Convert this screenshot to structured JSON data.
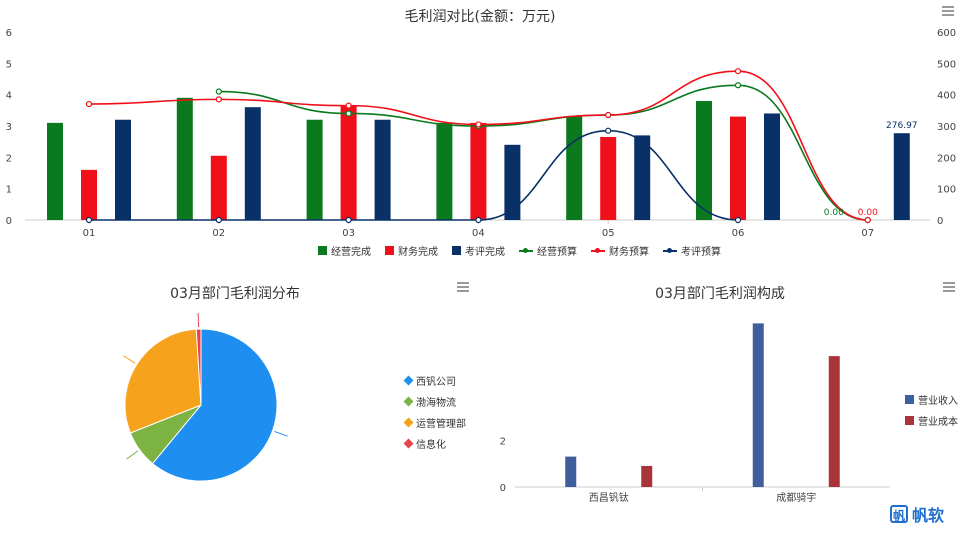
{
  "chart_data": [
    {
      "type": "bar",
      "title": "毛利润对比(金额：万元)",
      "categories": [
        "01",
        "02",
        "03",
        "04",
        "05",
        "06",
        "07"
      ],
      "y_left_ticks": [
        "0",
        "1",
        "2",
        "3",
        "4",
        "5",
        "6"
      ],
      "y_right_ticks": [
        "0",
        "100",
        "200",
        "300",
        "400",
        "500",
        "600"
      ],
      "ylim_right": [
        0,
        600
      ],
      "series": [
        {
          "name": "经营完成",
          "kind": "bar",
          "color": "#0b7a1f",
          "values": [
            310,
            390,
            320,
            310,
            330,
            380,
            0
          ]
        },
        {
          "name": "财务完成",
          "kind": "bar",
          "color": "#f0101a",
          "values": [
            160,
            205,
            365,
            310,
            265,
            330,
            0
          ]
        },
        {
          "name": "考评完成",
          "kind": "bar",
          "color": "#0a3068",
          "values": [
            320,
            360,
            320,
            240,
            270,
            340,
            277
          ]
        },
        {
          "name": "经营预算",
          "kind": "line",
          "color": "#0b7a1f",
          "values": [
            null,
            410,
            340,
            300,
            335,
            430,
            0
          ]
        },
        {
          "name": "财务预算",
          "kind": "line",
          "color": "#f0101a",
          "values": [
            370,
            385,
            365,
            305,
            335,
            475,
            0
          ]
        },
        {
          "name": "考评预算",
          "kind": "line",
          "color": "#0a3068",
          "values": [
            0,
            0,
            0,
            0,
            285,
            0,
            null
          ]
        }
      ],
      "data_labels": [
        {
          "category": "07",
          "series": "考评完成",
          "text": "276.97"
        },
        {
          "category": "07",
          "series": "经营完成",
          "text": "0.00"
        },
        {
          "category": "07",
          "series": "财务完成",
          "text": "0.00"
        }
      ]
    },
    {
      "type": "pie",
      "title": "03月部门毛利润分布",
      "slices": [
        {
          "name": "西钒公司",
          "value": 61,
          "color": "#1f8ef1"
        },
        {
          "name": "渤海物流",
          "value": 8,
          "color": "#7cb342"
        },
        {
          "name": "运营管理部",
          "value": 30,
          "color": "#f6a21c"
        },
        {
          "name": "信息化",
          "value": 1,
          "color": "#e8434c"
        }
      ]
    },
    {
      "type": "bar",
      "title": "03月部门毛利润构成",
      "categories": [
        "西昌钒钛",
        "成都骑宇"
      ],
      "y_ticks": [
        "0",
        "2"
      ],
      "ylim": [
        0,
        8
      ],
      "series": [
        {
          "name": "营业收入",
          "color": "#3f5f9c",
          "values": [
            1.3,
            7.0
          ]
        },
        {
          "name": "营业成本",
          "color": "#a8343a",
          "values": [
            0.9,
            5.6
          ]
        }
      ]
    }
  ],
  "logo": {
    "mark": "帆",
    "text": "帆软"
  }
}
